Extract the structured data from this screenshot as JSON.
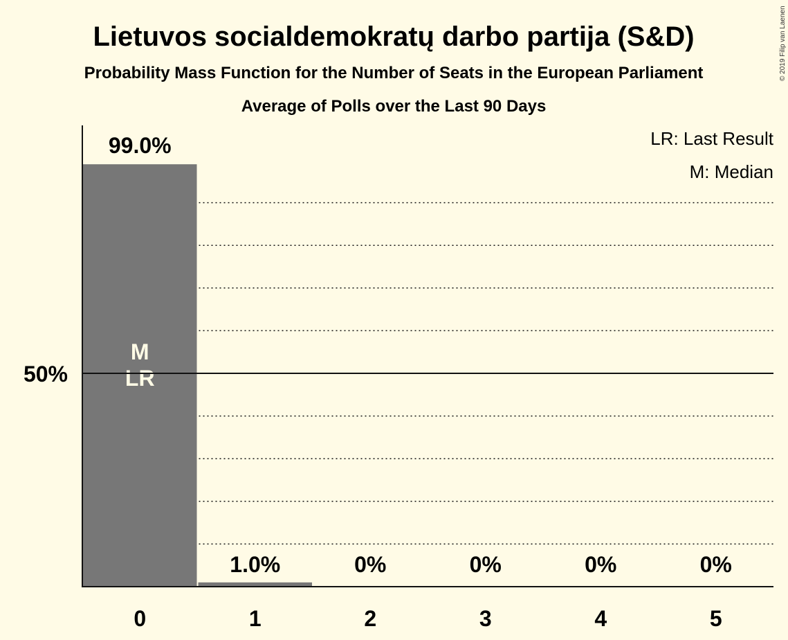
{
  "chart_data": {
    "type": "bar",
    "title": "Lietuvos socialdemokratų darbo partija (S&D)",
    "subtitle": "Probability Mass Function for the Number of Seats in the European Parliament",
    "subtitle2": "Average of Polls over the Last 90 Days",
    "categories": [
      "0",
      "1",
      "2",
      "3",
      "4",
      "5"
    ],
    "values": [
      99.0,
      1.0,
      0,
      0,
      0,
      0
    ],
    "value_labels": [
      "99.0%",
      "1.0%",
      "0%",
      "0%",
      "0%",
      "0%"
    ],
    "ylim": [
      0,
      108
    ],
    "yticks": [
      {
        "value": 50,
        "label": "50%"
      }
    ],
    "gridlines": [
      10,
      20,
      30,
      40,
      60,
      70,
      80,
      90
    ],
    "in_bar_labels": {
      "0": [
        "M",
        "LR"
      ]
    },
    "legend": [
      "LR: Last Result",
      "M: Median"
    ],
    "legend_position": "top-right",
    "bar_color": "#777777",
    "background": "#fffbe6",
    "copyright": "© 2019 Filip van Laenen"
  }
}
